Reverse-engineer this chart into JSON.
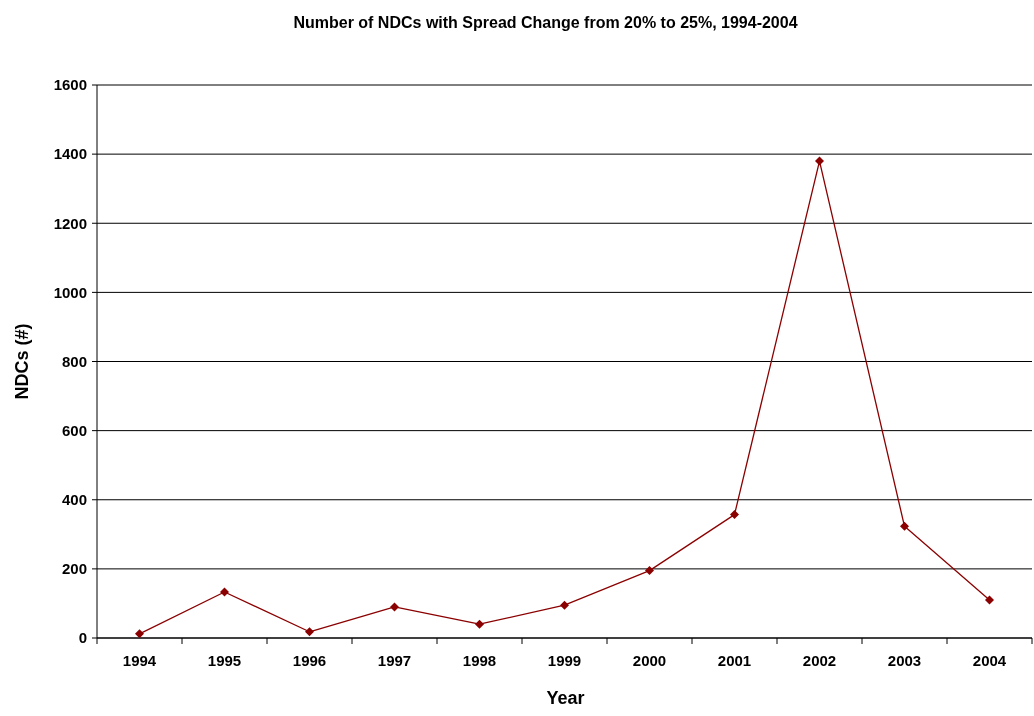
{
  "chart_data": {
    "type": "line",
    "title": "Number of NDCs with Spread Change from 20% to 25%, 1994-2004",
    "xlabel": "Year",
    "ylabel": "NDCs (#)",
    "categories": [
      "1994",
      "1995",
      "1996",
      "1997",
      "1998",
      "1999",
      "2000",
      "2001",
      "2002",
      "2003",
      "2004"
    ],
    "series": [
      {
        "color": "#8b0000",
        "values": [
          12,
          133,
          18,
          90,
          40,
          95,
          195,
          357,
          1380,
          323,
          110
        ]
      }
    ],
    "ylim": [
      0,
      1600
    ],
    "yticks": [
      0,
      200,
      400,
      600,
      800,
      1000,
      1200,
      1400,
      1600
    ],
    "grid": "y",
    "marker": "diamond",
    "line_style": "solid"
  }
}
